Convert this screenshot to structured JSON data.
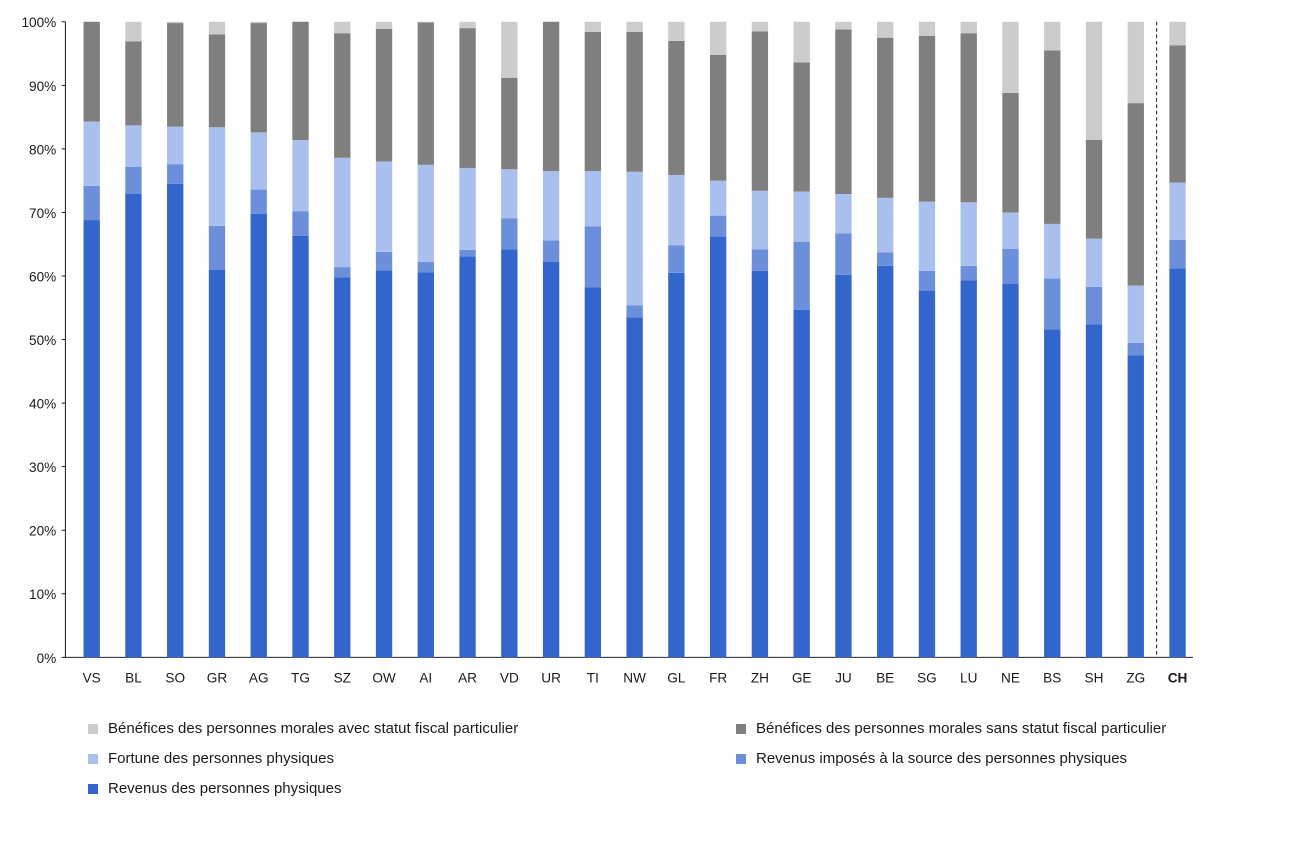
{
  "colors": {
    "revenus": "#3366cc",
    "source": "#6b8fdb",
    "fortune": "#a9c0ee",
    "sans_statut": "#7f7f7f",
    "avec_statut": "#cccccc"
  },
  "chart_data": {
    "type": "bar",
    "stacked": true,
    "title": "",
    "xlabel": "",
    "ylabel": "",
    "ylim": [
      0,
      100
    ],
    "y_tick_labels": [
      "0%",
      "10%",
      "20%",
      "30%",
      "40%",
      "50%",
      "60%",
      "70%",
      "80%",
      "90%",
      "100%"
    ],
    "categories": [
      "VS",
      "BL",
      "SO",
      "GR",
      "AG",
      "TG",
      "SZ",
      "OW",
      "AI",
      "AR",
      "VD",
      "UR",
      "TI",
      "NW",
      "GL",
      "FR",
      "ZH",
      "GE",
      "JU",
      "BE",
      "SG",
      "LU",
      "NE",
      "BS",
      "SH",
      "ZG",
      "CH"
    ],
    "highlight_category": "CH",
    "legend_placement": "bottom",
    "series": [
      {
        "key": "revenus",
        "name": "Revenus des personnes physiques",
        "values": [
          68.8,
          72.9,
          74.5,
          61.0,
          69.8,
          66.3,
          59.8,
          60.9,
          60.6,
          63.1,
          64.2,
          62.2,
          58.2,
          53.5,
          60.5,
          66.2,
          60.8,
          54.7,
          60.2,
          61.6,
          57.7,
          59.3,
          58.8,
          51.6,
          52.4,
          47.5,
          61.2
        ]
      },
      {
        "key": "source",
        "name": "Revenus imposés à la source des personnes physiques",
        "values": [
          5.4,
          4.3,
          3.1,
          6.9,
          3.8,
          3.9,
          1.6,
          2.9,
          1.6,
          1.0,
          4.9,
          3.4,
          9.6,
          1.9,
          4.3,
          3.3,
          3.4,
          10.7,
          6.5,
          2.1,
          3.1,
          2.3,
          5.5,
          8.0,
          5.9,
          2.0,
          4.5
        ]
      },
      {
        "key": "fortune",
        "name": "Fortune des personnes physiques",
        "values": [
          10.1,
          6.5,
          5.9,
          15.5,
          9.0,
          11.2,
          17.2,
          14.2,
          15.3,
          12.9,
          7.7,
          10.9,
          8.7,
          21.0,
          11.1,
          5.5,
          9.2,
          7.9,
          6.2,
          8.6,
          10.9,
          10.0,
          5.7,
          8.6,
          7.6,
          9.0,
          9.0
        ]
      },
      {
        "key": "sans_statut",
        "name": "Bénéfices des personnes morales sans statut fiscal particulier",
        "values": [
          15.7,
          13.2,
          16.3,
          14.6,
          17.2,
          18.6,
          19.6,
          20.9,
          22.4,
          22.0,
          14.4,
          23.5,
          21.9,
          22.0,
          21.1,
          19.8,
          25.1,
          20.3,
          25.9,
          25.2,
          26.1,
          26.6,
          18.8,
          27.3,
          15.5,
          28.7,
          21.6
        ]
      },
      {
        "key": "avec_statut",
        "name": "Bénéfices des personnes morales avec statut fiscal particulier",
        "values": [
          0.0,
          3.1,
          0.2,
          2.0,
          0.2,
          0.0,
          1.8,
          1.1,
          0.1,
          1.0,
          8.8,
          0.0,
          1.6,
          1.6,
          3.0,
          5.2,
          1.5,
          6.4,
          1.2,
          2.5,
          2.2,
          1.8,
          11.2,
          4.5,
          18.6,
          12.8,
          3.7
        ]
      }
    ],
    "legend_order": [
      "avec_statut",
      "sans_statut",
      "fortune",
      "source",
      "revenus"
    ]
  }
}
